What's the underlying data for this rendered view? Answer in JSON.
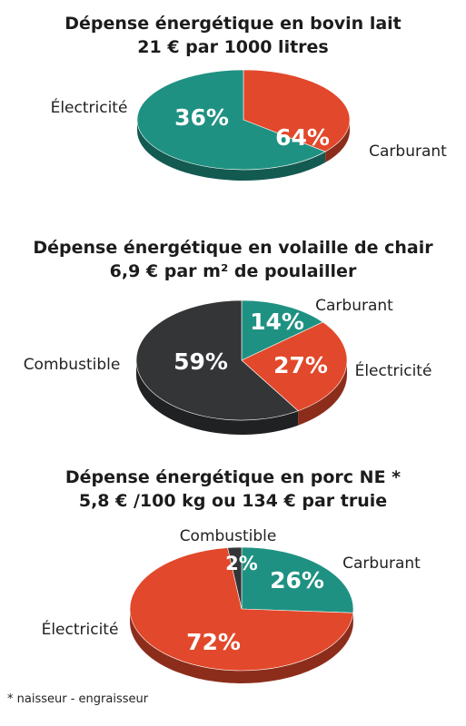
{
  "colors": {
    "teal": "#1f9182",
    "red": "#e2482b",
    "dark": "#333537"
  },
  "chart_data": [
    {
      "type": "pie",
      "title": "Dépense énergétique en bovin lait",
      "subtitle": "21 € par 1000 litres",
      "slices": [
        {
          "label": "Électricité",
          "value": 36,
          "display": "36%",
          "color": "#e2482b"
        },
        {
          "label": "Carburant",
          "value": 64,
          "display": "64%",
          "color": "#1f9182"
        }
      ]
    },
    {
      "type": "pie",
      "title": "Dépense énergétique en volaille de chair",
      "subtitle": "6,9 € par m² de poulailler",
      "slices": [
        {
          "label": "Carburant",
          "value": 14,
          "display": "14%",
          "color": "#1f9182"
        },
        {
          "label": "Électricité",
          "value": 27,
          "display": "27%",
          "color": "#e2482b"
        },
        {
          "label": "Combustible",
          "value": 59,
          "display": "59%",
          "color": "#333537"
        }
      ]
    },
    {
      "type": "pie",
      "title": "Dépense énergétique en porc NE *",
      "subtitle": "5,8 € /100 kg ou 134 € par truie",
      "slices": [
        {
          "label": "Carburant",
          "value": 26,
          "display": "26%",
          "color": "#1f9182"
        },
        {
          "label": "Électricité",
          "value": 72,
          "display": "72%",
          "color": "#e2482b"
        },
        {
          "label": "Combustible",
          "value": 2,
          "display": "2%",
          "color": "#333537"
        }
      ]
    }
  ],
  "footnote": "* naisseur - engraisseur"
}
